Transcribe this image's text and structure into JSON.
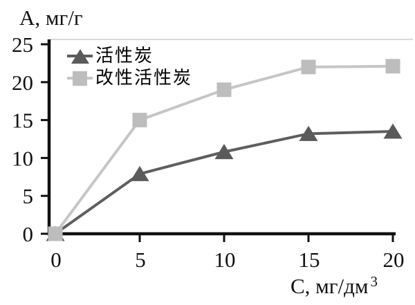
{
  "chart_data": {
    "type": "line",
    "title": "",
    "ylabel": "А, мг/г",
    "xlabel": "С, мг/дм",
    "xlabel_superscript": "3",
    "x": [
      0,
      5,
      10,
      15,
      20
    ],
    "series": [
      {
        "name": "活性炭",
        "marker": "triangle",
        "marker_color": "#5a5a5a",
        "line_color": "#5e5e5e",
        "values": [
          0,
          7.9,
          10.8,
          13.2,
          13.5
        ]
      },
      {
        "name": "改性活性炭",
        "marker": "square",
        "marker_color": "#bdbdbd",
        "line_color": "#c6c6c6",
        "values": [
          0,
          15,
          19,
          22,
          22.1
        ]
      }
    ],
    "xlim": [
      0,
      20
    ],
    "ylim": [
      0,
      25
    ],
    "x_ticks": [
      0,
      5,
      10,
      15,
      20
    ],
    "y_ticks": [
      0,
      5,
      10,
      15,
      20,
      25
    ],
    "grid": false,
    "legend_position": "top-left-inside",
    "axis_color": "#111111",
    "tick_label_color": "#111111",
    "plot_top_border_color": "#d9d9d9"
  }
}
